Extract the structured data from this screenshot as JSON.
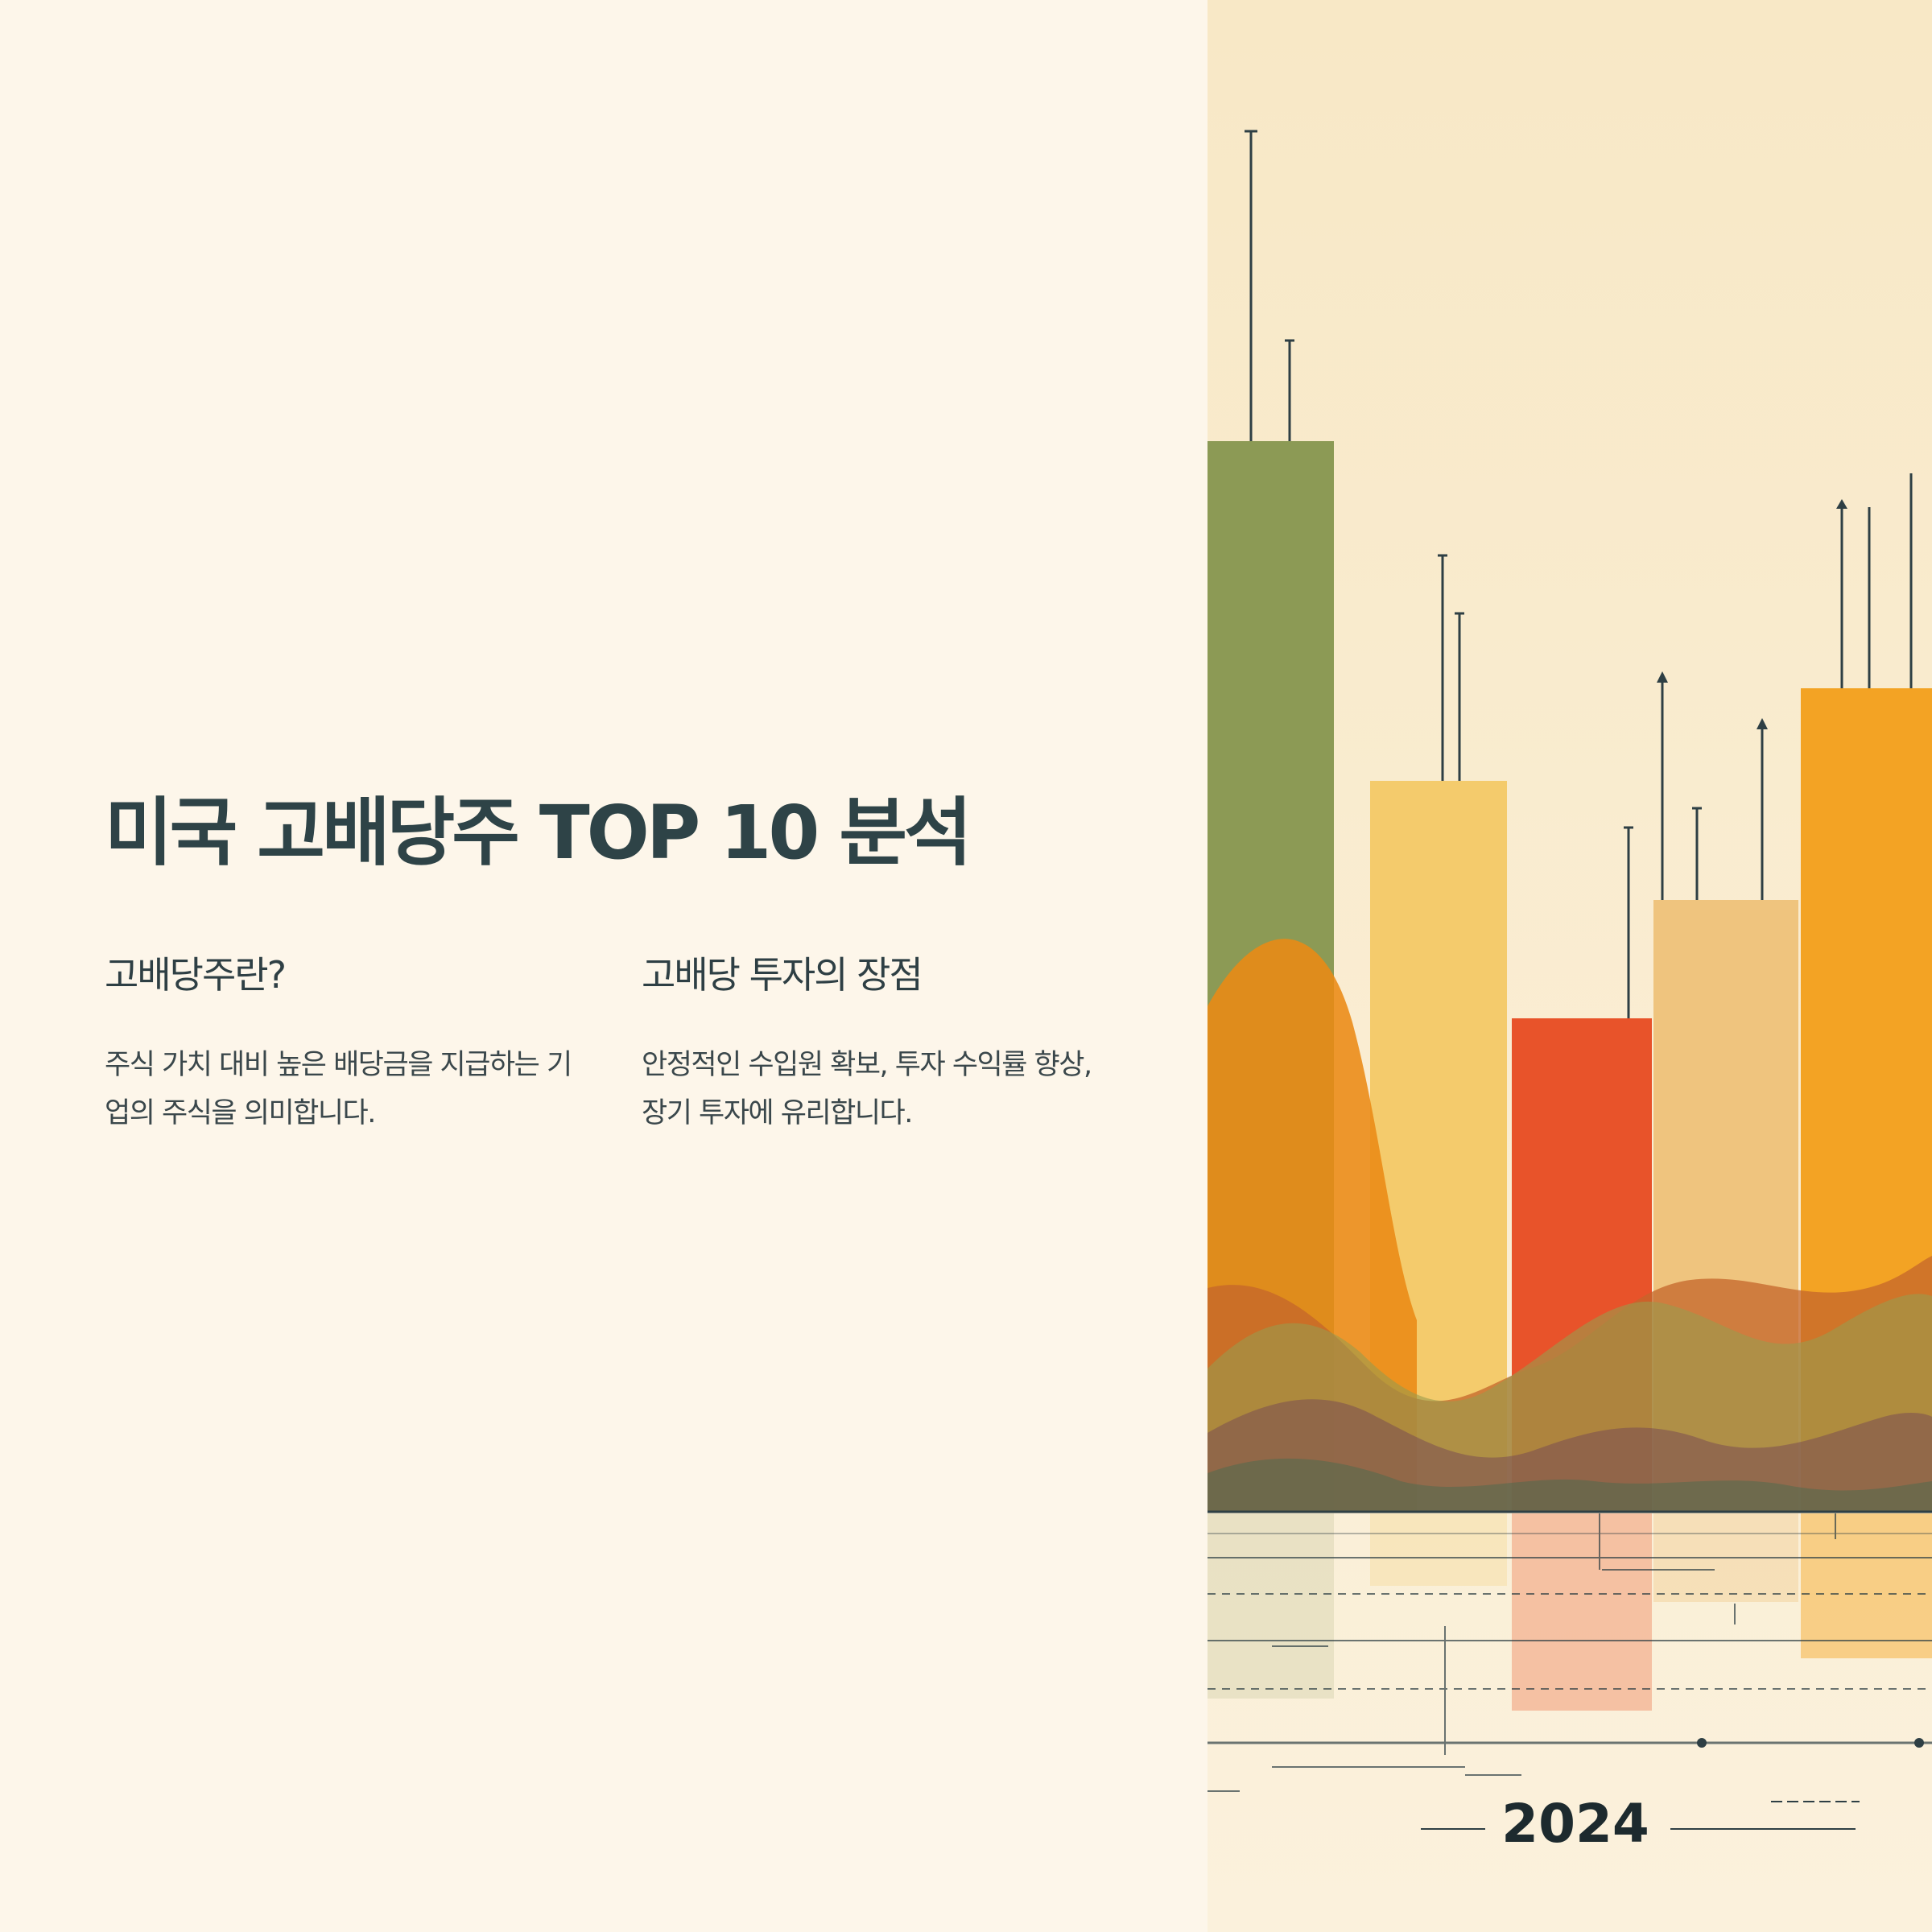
{
  "page": {
    "title": "미국 고배당주 TOP 10 분석"
  },
  "sections": [
    {
      "heading": "고배당주란?",
      "body": "주식 가치 대비 높은 배당금을 지급하는 기업의 주식을 의미합니다."
    },
    {
      "heading": "고배당 투자의 장점",
      "body": "안정적인 수입원 확보, 투자 수익률 향상, 장기 투자에 유리합니다."
    }
  ],
  "illustration": {
    "year_label": "2024",
    "colors": {
      "background": "#fdf6ea",
      "panel": "#f9ebcd",
      "olive": "#8c9a55",
      "light_yellow": "#f4cb6c",
      "red_orange": "#e8532a",
      "peach": "#efc47e",
      "orange": "#f3a324",
      "dark": "#2e3f44"
    }
  }
}
